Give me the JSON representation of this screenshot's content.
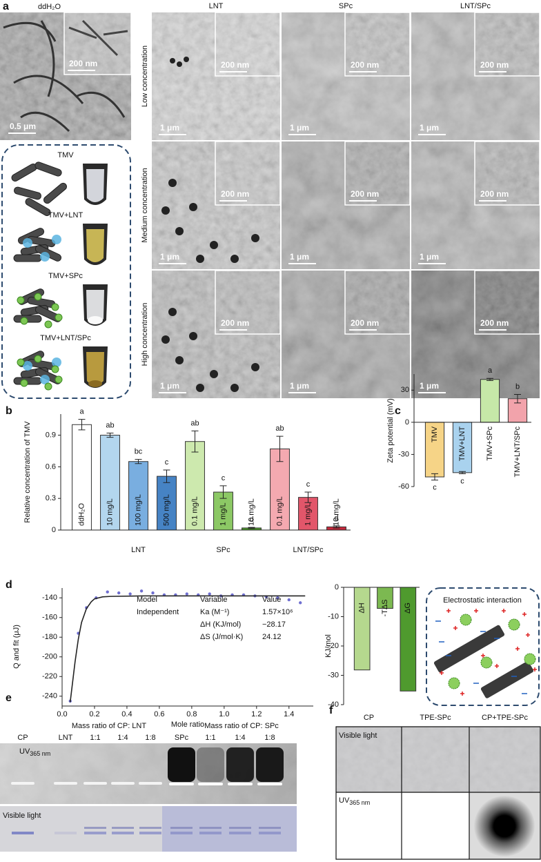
{
  "figure": {
    "panel_labels": [
      "a",
      "b",
      "c",
      "d",
      "e",
      "f"
    ],
    "panel_a": {
      "control": {
        "title": "ddH₂O",
        "scale": "0.5 μm",
        "inset_scale": "200 nm"
      },
      "columns": [
        "LNT",
        "SPc",
        "LNT/SPc"
      ],
      "rows": [
        "Low concentration",
        "Medium concentration",
        "High concentration"
      ],
      "scale": "1 μm",
      "inset_scale": "200 nm",
      "schematic": [
        "TMV",
        "TMV+LNT",
        "TMV+SPc",
        "TMV+LNT/SPc"
      ]
    },
    "panel_d_schematic": {
      "title": "Electrostatic interaction"
    },
    "panel_e": {
      "headers": [
        "Mass ratio of CP: LNT",
        "Mass ratio of CP: SPc"
      ],
      "lanes": [
        "CP",
        "LNT",
        "1:1",
        "1:4",
        "1:8",
        "SPc",
        "1:1",
        "1:4",
        "1:8"
      ],
      "uv": {
        "main": "UV",
        "sub": "365 nm"
      },
      "visible": "Visible light"
    },
    "panel_f": {
      "columns": [
        "CP",
        "TPE-SPc",
        "CP+TPE-SPc"
      ],
      "visible": "Visible light",
      "uv": {
        "main": "UV",
        "sub": "365 nm"
      }
    }
  },
  "chart_data": [
    {
      "type": "bar",
      "y_label": "Relative concentration of TMV",
      "categories": [
        "ddH₂O",
        "10 mg/L",
        "100 mg/L",
        "500 mg/L",
        "0.1 mg/L",
        "1 mg/L",
        "10 mg/L",
        "0.1 mg/L",
        "1 mg/L",
        "10 mg/L"
      ],
      "groups": [
        null,
        "LNT",
        "LNT",
        "LNT",
        "SPc",
        "SPc",
        "SPc",
        "LNT/SPc",
        "LNT/SPc",
        "LNT/SPc"
      ],
      "values": [
        1.0,
        0.9,
        0.65,
        0.51,
        0.84,
        0.36,
        0.02,
        0.77,
        0.31,
        0.03
      ],
      "errors": [
        0.05,
        0.02,
        0.02,
        0.06,
        0.1,
        0.06,
        0.005,
        0.12,
        0.05,
        0.01
      ],
      "letters": [
        "a",
        "ab",
        "bc",
        "c",
        "ab",
        "c",
        "d",
        "ab",
        "c",
        "d"
      ],
      "colors": [
        "#ffffff",
        "#b3d6ee",
        "#79aee0",
        "#4683c4",
        "#cde9ae",
        "#8cc865",
        "#4f9a2e",
        "#f4a9b0",
        "#e2566a",
        "#c52a3c"
      ],
      "ylim": [
        0,
        1.1
      ],
      "yticks": [
        0,
        0.3,
        0.6,
        0.9
      ]
    },
    {
      "type": "bar",
      "y_label": "Zeta potential (mV)",
      "categories": [
        "TMV",
        "TMV+LNT",
        "TMV+SPc",
        "TMV+LNT/SPc"
      ],
      "values": [
        -51,
        -47,
        40,
        22
      ],
      "errors": [
        3,
        1,
        1,
        4
      ],
      "letters": [
        "c",
        "c",
        "a",
        "b"
      ],
      "colors": [
        "#f6d487",
        "#a9d2ee",
        "#c6e8a8",
        "#f2a3ab"
      ],
      "ylim": [
        -60,
        45
      ],
      "yticks": [
        -60,
        -30,
        0,
        30
      ]
    },
    {
      "type": "scatter",
      "x_label": "Mole ratio",
      "y_label": "Q and fit (μJ)",
      "series": [
        {
          "mode": "markers",
          "color": "#6f6fd0",
          "x": [
            0.05,
            0.1,
            0.15,
            0.21,
            0.28,
            0.35,
            0.42,
            0.49,
            0.56,
            0.63,
            0.7,
            0.77,
            0.84,
            0.91,
            0.98,
            1.05,
            1.12,
            1.19,
            1.26,
            1.33,
            1.4,
            1.47
          ],
          "values": [
            -245,
            -176,
            -150,
            -140,
            -134,
            -135,
            -136,
            -133,
            -135,
            -137,
            -137,
            -136,
            -137,
            -136,
            -138,
            -137,
            -137,
            -138,
            -139,
            -140,
            -142,
            -145
          ]
        },
        {
          "mode": "line",
          "color": "#222222",
          "x": [
            0.05,
            0.08,
            0.1,
            0.12,
            0.15,
            0.18,
            0.2,
            0.25,
            0.3,
            0.5,
            1.0,
            1.5
          ],
          "values": [
            -246,
            -205,
            -182,
            -165,
            -151,
            -144,
            -141,
            -139,
            -138.5,
            -138,
            -138,
            -138
          ]
        }
      ],
      "xlim": [
        0,
        1.55
      ],
      "ylim": [
        -250,
        -130
      ],
      "xticks": [
        {
          "value": 0,
          "label": "0.0"
        },
        0.2,
        0.4,
        0.6,
        0.8,
        {
          "value": 1,
          "label": "1.0"
        },
        1.2,
        1.4
      ],
      "yticks": [
        -240,
        -220,
        -200,
        -180,
        -160,
        -140
      ],
      "table": [
        [
          "Model",
          "Variable",
          "Value"
        ],
        [
          "Independent",
          "Ka (M⁻¹)",
          "1.57×10⁶"
        ],
        [
          null,
          "ΔH (KJ/mol)",
          "−28.17"
        ],
        [
          null,
          "ΔS (J/mol·K)",
          "24.12"
        ]
      ]
    },
    {
      "type": "bar",
      "y_label": "KJ/mol",
      "categories": [
        "ΔH",
        "-TΔS",
        "ΔG"
      ],
      "values": [
        -28.17,
        -7.19,
        -35.36
      ],
      "colors": [
        "#b5d88e",
        "#7cb951",
        "#4f9a2e"
      ],
      "ylim": [
        -40,
        0
      ],
      "yticks": [
        0,
        -10,
        -20,
        -30,
        -40
      ]
    }
  ]
}
